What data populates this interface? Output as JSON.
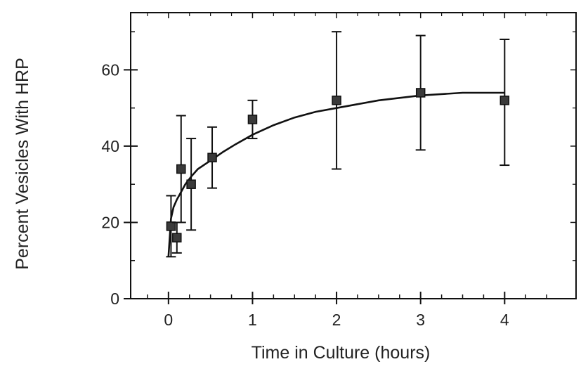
{
  "chart_data": {
    "type": "scatter",
    "title": "",
    "xlabel": "Time in Culture (hours)",
    "ylabel": "Percent Vesicles With HRP",
    "xlim": [
      -0.45,
      4.85
    ],
    "ylim": [
      0,
      75
    ],
    "xticks": [
      0,
      1,
      2,
      3,
      4
    ],
    "yticks": [
      0,
      20,
      40,
      60
    ],
    "xticks_minor": [
      -0.25,
      0.25,
      0.5,
      0.75,
      1.25,
      1.5,
      1.75,
      2.25,
      2.5,
      2.75,
      3.25,
      3.5,
      3.75,
      4.25,
      4.5
    ],
    "yticks_minor": [
      10,
      30,
      50,
      70
    ],
    "grid": false,
    "series": [
      {
        "marker": "square",
        "x": [
          0.03,
          0.1,
          0.15,
          0.27,
          0.52,
          1.0,
          2.0,
          3.0,
          4.0
        ],
        "y": [
          19,
          16,
          34,
          30,
          37,
          47,
          52,
          54,
          52
        ],
        "error_low": [
          11,
          12,
          20,
          18,
          29,
          42,
          34,
          39,
          35
        ],
        "error_high": [
          27,
          20,
          48,
          42,
          45,
          52,
          70,
          69,
          68
        ]
      }
    ],
    "fit_curve": {
      "x": [
        0,
        0.03,
        0.06,
        0.1,
        0.15,
        0.2,
        0.27,
        0.35,
        0.45,
        0.52,
        0.65,
        0.8,
        1.0,
        1.25,
        1.5,
        1.75,
        2.0,
        2.5,
        3.0,
        3.5,
        4.0
      ],
      "y": [
        11,
        21,
        24,
        26,
        28,
        30,
        32,
        34,
        35.5,
        36.5,
        38.5,
        40.5,
        43,
        45.5,
        47.5,
        49,
        50,
        52,
        53.3,
        54,
        54
      ]
    },
    "colors": {
      "ink": "#111111"
    }
  }
}
